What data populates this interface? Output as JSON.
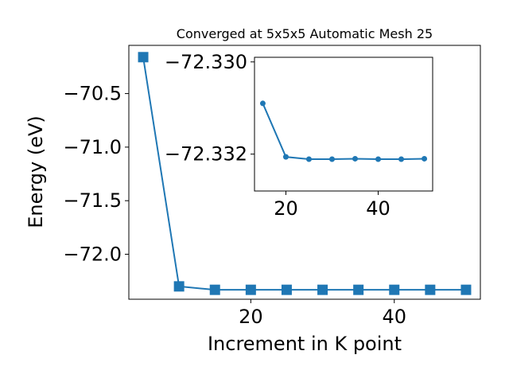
{
  "chart_data": [
    {
      "type": "line",
      "title": "Converged at 5x5x5 Automatic Mesh 25",
      "xlabel": "Increment in K point",
      "ylabel": "Energy (eV)",
      "xlim": [
        3.0,
        52.0
      ],
      "ylim": [
        -72.42,
        -70.05
      ],
      "x_ticks": [
        20,
        40
      ],
      "y_ticks": [
        -70.5,
        -71.0,
        -71.5,
        -72.0
      ],
      "y_tick_labels": [
        "−70.5",
        "−71.0",
        "−71.5",
        "−72.0"
      ],
      "marker": "square",
      "color": "#1f77b4",
      "grid": false,
      "series": [
        {
          "x": [
            5,
            10,
            15,
            20,
            25,
            30,
            35,
            40,
            45,
            50
          ],
          "y": [
            -70.16,
            -72.3,
            -72.332,
            -72.332,
            -72.332,
            -72.332,
            -72.332,
            -72.332,
            -72.332,
            -72.332
          ]
        }
      ]
    },
    {
      "type": "line",
      "inset": true,
      "xlim": [
        13.2,
        51.8
      ],
      "ylim": [
        -72.3328,
        -72.3299
      ],
      "x_ticks": [
        20,
        40
      ],
      "y_ticks": [
        -72.332,
        -72.33
      ],
      "y_tick_labels": [
        "−72.332",
        "−72.330"
      ],
      "marker": "circle",
      "color": "#1f77b4",
      "grid": false,
      "series": [
        {
          "x": [
            15,
            20,
            25,
            30,
            35,
            40,
            45,
            50
          ],
          "y": [
            -72.3309,
            -72.33206,
            -72.33211,
            -72.33211,
            -72.3321,
            -72.33211,
            -72.33211,
            -72.3321
          ]
        }
      ]
    }
  ]
}
